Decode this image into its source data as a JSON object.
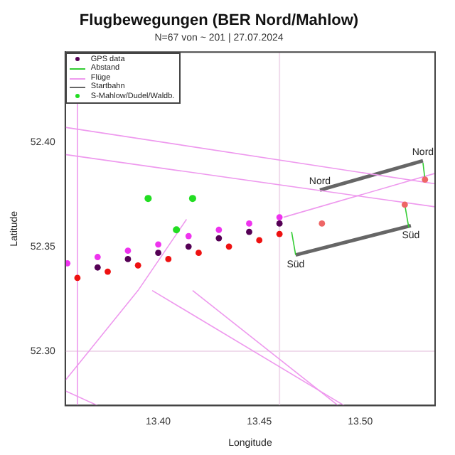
{
  "chart_data": {
    "type": "scatter",
    "title": "Flugbewegungen (BER Nord/Mahlow)",
    "subtitle": "N=67 von ~ 201 | 27.07.2024",
    "xlabel": "Longitude",
    "ylabel": "Latitude",
    "xlim": [
      13.354,
      13.537
    ],
    "ylim": [
      52.274,
      52.443
    ],
    "xticks": [
      {
        "value": 13.4,
        "label": "13.40"
      },
      13.45,
      {
        "value": 13.5,
        "label": "13.50"
      }
    ],
    "yticks": [
      {
        "value": 52.3,
        "label": "52.30"
      },
      52.35,
      {
        "value": 52.4,
        "label": "52.40"
      }
    ],
    "grid": false,
    "legend": "top left",
    "ref_lines": [
      {
        "axis": "x",
        "value": 13.46,
        "color": "#f0dcec"
      },
      {
        "axis": "y",
        "value": 52.3,
        "color": "#f0dcec"
      }
    ],
    "series": [
      {
        "name": "GPS data",
        "type": "scatter",
        "marker": "circle",
        "color": "#550055",
        "x": [
          13.355,
          13.37,
          13.385,
          13.4,
          13.415,
          13.43,
          13.445,
          13.46,
          13.37,
          13.385,
          13.4,
          13.415,
          13.43,
          13.445,
          13.46,
          13.36,
          13.375,
          13.39,
          13.405,
          13.42,
          13.435,
          13.45,
          13.46,
          13.481,
          13.522,
          13.532
        ],
        "values": [
          52.342,
          52.345,
          52.348,
          52.351,
          52.355,
          52.358,
          52.361,
          52.364,
          52.34,
          52.344,
          52.347,
          52.35,
          52.354,
          52.357,
          52.361,
          52.335,
          52.338,
          52.341,
          52.344,
          52.347,
          52.35,
          52.353,
          52.356,
          52.361,
          52.37,
          52.382
        ],
        "colors": [
          "#ee33ee",
          "#ee33ee",
          "#ee33ee",
          "#ee33ee",
          "#ee33ee",
          "#ee33ee",
          "#ee33ee",
          "#ee33ee",
          "#550055",
          "#550055",
          "#550055",
          "#550055",
          "#550055",
          "#550055",
          "#550055",
          "#ee1111",
          "#ee1111",
          "#ee1111",
          "#ee1111",
          "#ee1111",
          "#ee1111",
          "#ee1111",
          "#ee1111",
          "#ee6666",
          "#ee6666",
          "#ee6666"
        ]
      },
      {
        "name": "Abstand",
        "type": "line",
        "color": "#33cc33",
        "x": [
          13.466,
          13.468
        ],
        "values": [
          52.357,
          52.346
        ]
      },
      {
        "type": "line",
        "color": "#33cc33",
        "x": [
          13.522,
          13.524
        ],
        "values": [
          52.37,
          52.359
        ]
      },
      {
        "type": "line",
        "color": "#33cc33",
        "x": [
          13.531,
          13.532
        ],
        "values": [
          52.39,
          52.382
        ]
      },
      {
        "name": "Flüge",
        "type": "line",
        "color": "#ee99ee",
        "x": [
          13.354,
          13.537
        ],
        "values": [
          52.407,
          52.38
        ]
      },
      {
        "type": "line",
        "color": "#ee99ee",
        "x": [
          13.354,
          13.537
        ],
        "values": [
          52.394,
          52.369
        ]
      },
      {
        "type": "line",
        "color": "#ee99ee",
        "x": [
          13.36,
          13.36
        ],
        "values": [
          52.42,
          52.274
        ]
      },
      {
        "type": "line",
        "color": "#ee99ee",
        "x": [
          13.354,
          13.39,
          13.414
        ],
        "values": [
          52.286,
          52.329,
          52.363
        ]
      },
      {
        "type": "line",
        "color": "#ee99ee",
        "x": [
          13.397,
          13.492
        ],
        "values": [
          52.329,
          52.274
        ]
      },
      {
        "type": "line",
        "color": "#ee99ee",
        "x": [
          13.417,
          13.489
        ],
        "values": [
          52.329,
          52.274
        ]
      },
      {
        "type": "line",
        "color": "#ee99ee",
        "x": [
          13.354,
          13.37
        ],
        "values": [
          52.281,
          52.274
        ]
      },
      {
        "type": "line",
        "color": "#ee99ee",
        "x": [
          13.462,
          13.537
        ],
        "values": [
          52.364,
          52.385
        ]
      },
      {
        "name": "Startbahn",
        "type": "line",
        "color": "#666666",
        "x": [
          13.48,
          13.531
        ],
        "values": [
          52.377,
          52.391
        ]
      },
      {
        "type": "line",
        "color": "#666666",
        "x": [
          13.468,
          13.525
        ],
        "values": [
          52.346,
          52.36
        ]
      },
      {
        "name": "S-Mahlow/Dudel/Waldb.",
        "type": "scatter",
        "marker": "circle",
        "color": "#22dd22",
        "x": [
          13.395,
          13.417,
          13.409
        ],
        "values": [
          52.373,
          52.373,
          52.358
        ]
      }
    ],
    "annotations": [
      {
        "text": "Nord",
        "x": 13.48,
        "y": 52.377
      },
      {
        "text": "Nord",
        "x": 13.531,
        "y": 52.391
      },
      {
        "text": "Süd",
        "x": 13.468,
        "y": 52.346
      },
      {
        "text": "Süd",
        "x": 13.525,
        "y": 52.36
      }
    ]
  }
}
